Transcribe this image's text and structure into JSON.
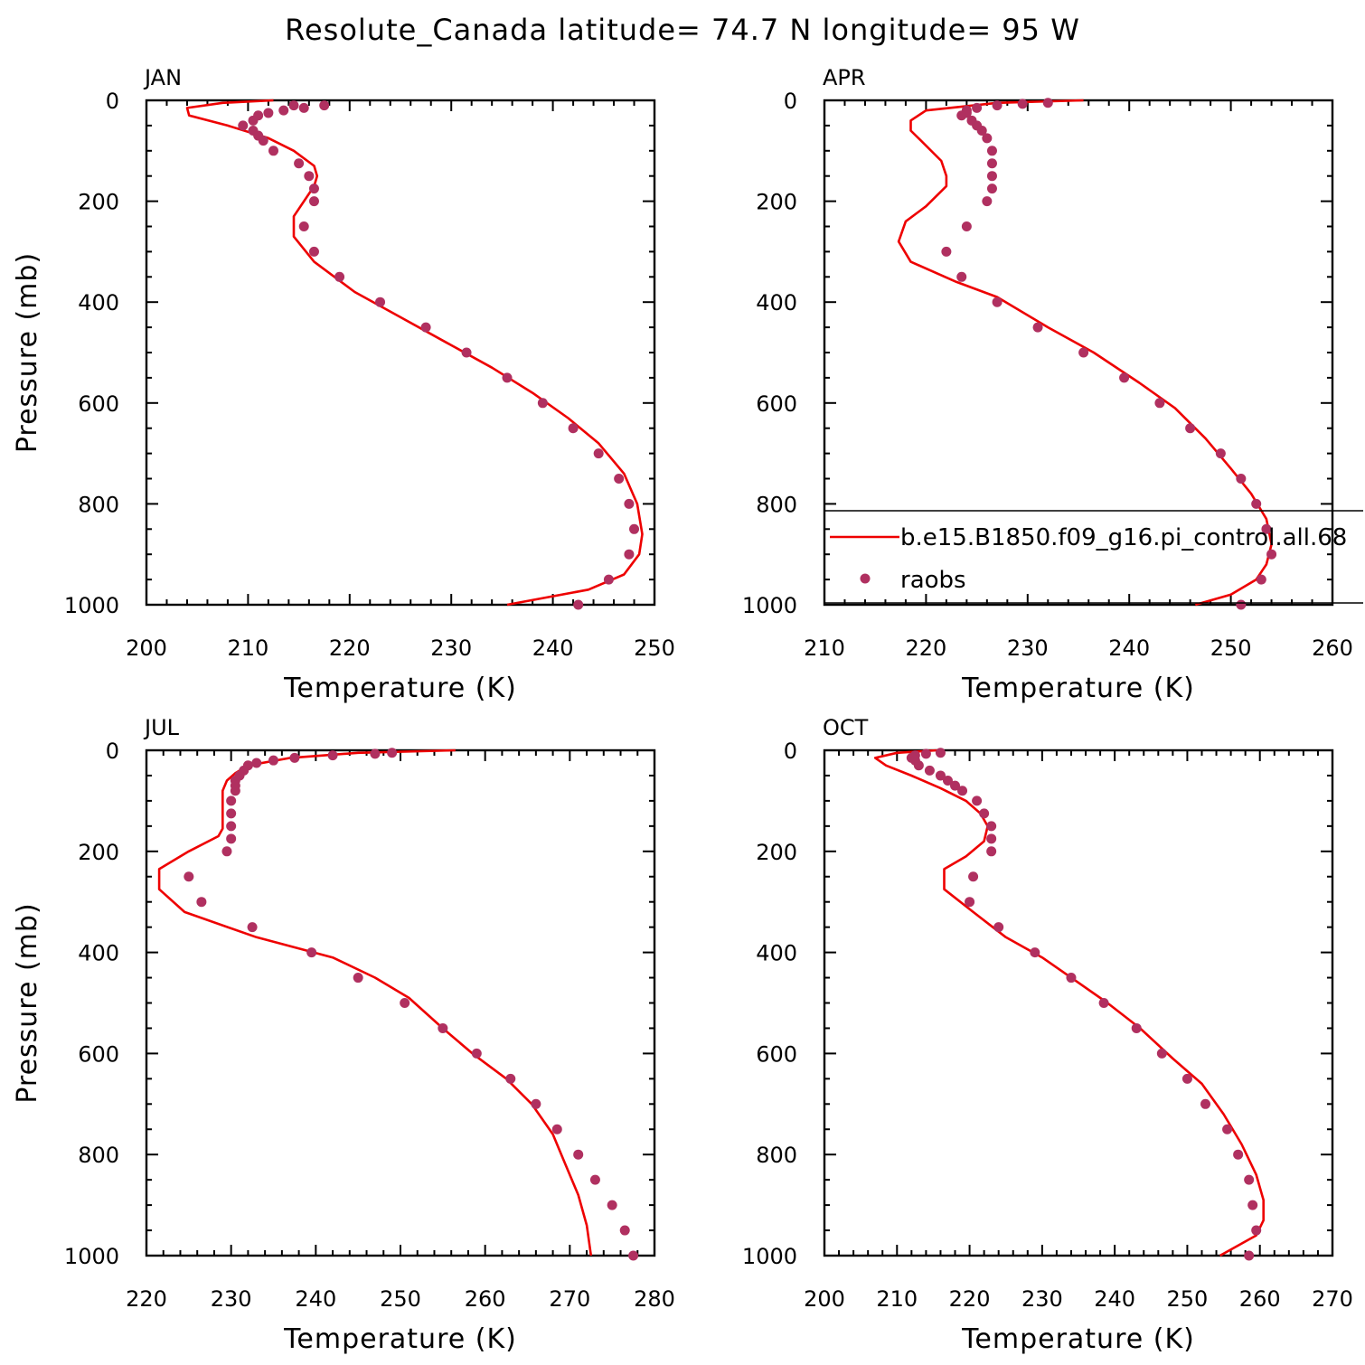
{
  "title": "Resolute_Canada  latitude= 74.7 N longitude= 95 W",
  "colors": {
    "model": "#ee0000",
    "obs": "#b03060",
    "axis": "#000000"
  },
  "legend": {
    "model_label": "b.e15.B1850.f09_g16.pi_control.all.68",
    "obs_label": "raobs"
  },
  "chart_data": [
    {
      "type": "line",
      "panel": "JAN",
      "title": "JAN",
      "xlabel": "Temperature (K)",
      "ylabel": "Pressure (mb)",
      "xlim": [
        200,
        250
      ],
      "ylim": [
        0,
        1000
      ],
      "y_inverted": true,
      "xticks": [
        200,
        210,
        220,
        230,
        240,
        250
      ],
      "yticks": [
        0,
        200,
        400,
        600,
        800,
        1000
      ],
      "series": [
        {
          "name": "b.e15.B1850.f09_g16.pi_control.all.68",
          "style": "line",
          "points": [
            [
              212.5,
              0
            ],
            [
              207.5,
              5
            ],
            [
              204,
              15
            ],
            [
              204.2,
              30
            ],
            [
              208,
              50
            ],
            [
              212,
              75
            ],
            [
              214.5,
              100
            ],
            [
              216.5,
              130
            ],
            [
              216.8,
              150
            ],
            [
              216.5,
              170
            ],
            [
              214.5,
              230
            ],
            [
              214.5,
              270
            ],
            [
              216.5,
              320
            ],
            [
              220.5,
              380
            ],
            [
              225,
              430
            ],
            [
              229.5,
              480
            ],
            [
              234,
              530
            ],
            [
              238,
              580
            ],
            [
              241.5,
              630
            ],
            [
              244.5,
              680
            ],
            [
              247,
              740
            ],
            [
              248.3,
              800
            ],
            [
              248.8,
              860
            ],
            [
              248.5,
              900
            ],
            [
              247,
              940
            ],
            [
              243.5,
              970
            ],
            [
              235.5,
              1000
            ]
          ]
        },
        {
          "name": "raobs",
          "style": "points",
          "points": [
            [
              217.5,
              10
            ],
            [
              214.5,
              10
            ],
            [
              215.5,
              15
            ],
            [
              213.5,
              20
            ],
            [
              212,
              25
            ],
            [
              211,
              30
            ],
            [
              210.5,
              40
            ],
            [
              209.5,
              50
            ],
            [
              210.5,
              60
            ],
            [
              211,
              70
            ],
            [
              211.5,
              80
            ],
            [
              212.5,
              100
            ],
            [
              215,
              125
            ],
            [
              216,
              150
            ],
            [
              216.5,
              175
            ],
            [
              216.5,
              200
            ],
            [
              215.5,
              250
            ],
            [
              216.5,
              300
            ],
            [
              219,
              350
            ],
            [
              223,
              400
            ],
            [
              227.5,
              450
            ],
            [
              231.5,
              500
            ],
            [
              235.5,
              550
            ],
            [
              239,
              600
            ],
            [
              242,
              650
            ],
            [
              244.5,
              700
            ],
            [
              246.5,
              750
            ],
            [
              247.5,
              800
            ],
            [
              248,
              850
            ],
            [
              247.5,
              900
            ],
            [
              245.5,
              950
            ],
            [
              242.5,
              1000
            ]
          ]
        }
      ]
    },
    {
      "type": "line",
      "panel": "APR",
      "title": "APR",
      "xlabel": "Temperature (K)",
      "ylabel": "",
      "xlim": [
        210,
        260
      ],
      "ylim": [
        0,
        1000
      ],
      "y_inverted": true,
      "xticks": [
        210,
        220,
        230,
        240,
        250,
        260
      ],
      "yticks": [
        0,
        200,
        400,
        600,
        800,
        1000
      ],
      "legend_position": "bottom-right",
      "series": [
        {
          "name": "b.e15.B1850.f09_g16.pi_control.all.68",
          "style": "line",
          "points": [
            [
              235.5,
              0
            ],
            [
              227,
              5
            ],
            [
              220,
              20
            ],
            [
              218.5,
              40
            ],
            [
              218.5,
              60
            ],
            [
              219.5,
              80
            ],
            [
              221.5,
              120
            ],
            [
              222,
              150
            ],
            [
              222,
              170
            ],
            [
              220,
              210
            ],
            [
              218,
              240
            ],
            [
              217.3,
              280
            ],
            [
              218.5,
              320
            ],
            [
              223,
              360
            ],
            [
              227,
              390
            ],
            [
              232,
              450
            ],
            [
              236.5,
              500
            ],
            [
              241,
              560
            ],
            [
              244.5,
              610
            ],
            [
              247.5,
              670
            ],
            [
              250,
              730
            ],
            [
              252,
              780
            ],
            [
              253.5,
              830
            ],
            [
              254,
              880
            ],
            [
              253.5,
              920
            ],
            [
              252.5,
              950
            ],
            [
              250,
              980
            ],
            [
              246.5,
              1000
            ]
          ]
        },
        {
          "name": "raobs",
          "style": "points",
          "points": [
            [
              232,
              5
            ],
            [
              229.5,
              7
            ],
            [
              227,
              10
            ],
            [
              225,
              15
            ],
            [
              224,
              20
            ],
            [
              224,
              25
            ],
            [
              223.5,
              30
            ],
            [
              224.5,
              40
            ],
            [
              225,
              50
            ],
            [
              225.5,
              60
            ],
            [
              226,
              75
            ],
            [
              226.5,
              100
            ],
            [
              226.5,
              125
            ],
            [
              226.5,
              150
            ],
            [
              226.5,
              175
            ],
            [
              226,
              200
            ],
            [
              224,
              250
            ],
            [
              222,
              300
            ],
            [
              223.5,
              350
            ],
            [
              227,
              400
            ],
            [
              231,
              450
            ],
            [
              235.5,
              500
            ],
            [
              239.5,
              550
            ],
            [
              243,
              600
            ],
            [
              246,
              650
            ],
            [
              249,
              700
            ],
            [
              251,
              750
            ],
            [
              252.5,
              800
            ],
            [
              253.5,
              850
            ],
            [
              254,
              900
            ],
            [
              253,
              950
            ],
            [
              251,
              1000
            ]
          ]
        }
      ]
    },
    {
      "type": "line",
      "panel": "JUL",
      "title": "JUL",
      "xlabel": "Temperature (K)",
      "ylabel": "Pressure (mb)",
      "xlim": [
        220,
        280
      ],
      "ylim": [
        0,
        1000
      ],
      "y_inverted": true,
      "xticks": [
        220,
        230,
        240,
        250,
        260,
        270,
        280
      ],
      "yticks": [
        0,
        200,
        400,
        600,
        800,
        1000
      ],
      "series": [
        {
          "name": "b.e15.B1850.f09_g16.pi_control.all.68",
          "style": "line",
          "points": [
            [
              256.5,
              0
            ],
            [
              245,
              5
            ],
            [
              237,
              15
            ],
            [
              232,
              30
            ],
            [
              230.5,
              45
            ],
            [
              229.5,
              60
            ],
            [
              229,
              80
            ],
            [
              229,
              120
            ],
            [
              229,
              155
            ],
            [
              228.5,
              170
            ],
            [
              225,
              200
            ],
            [
              221.5,
              235
            ],
            [
              221.5,
              275
            ],
            [
              224.5,
              320
            ],
            [
              233,
              370
            ],
            [
              242,
              410
            ],
            [
              247,
              450
            ],
            [
              251,
              490
            ],
            [
              255,
              550
            ],
            [
              258.5,
              600
            ],
            [
              262.5,
              650
            ],
            [
              265.5,
              700
            ],
            [
              268,
              760
            ],
            [
              269.5,
              820
            ],
            [
              271,
              880
            ],
            [
              272,
              940
            ],
            [
              272.5,
              1000
            ]
          ]
        },
        {
          "name": "raobs",
          "style": "points",
          "points": [
            [
              249,
              5
            ],
            [
              247,
              7
            ],
            [
              242,
              10
            ],
            [
              237.5,
              15
            ],
            [
              235,
              20
            ],
            [
              233,
              25
            ],
            [
              232,
              30
            ],
            [
              231.5,
              40
            ],
            [
              231,
              50
            ],
            [
              230.5,
              60
            ],
            [
              230.5,
              70
            ],
            [
              230.5,
              80
            ],
            [
              230,
              100
            ],
            [
              230,
              125
            ],
            [
              230,
              150
            ],
            [
              230,
              175
            ],
            [
              229.5,
              200
            ],
            [
              225,
              250
            ],
            [
              226.5,
              300
            ],
            [
              232.5,
              350
            ],
            [
              239.5,
              400
            ],
            [
              245,
              450
            ],
            [
              250.5,
              500
            ],
            [
              255,
              550
            ],
            [
              259,
              600
            ],
            [
              263,
              650
            ],
            [
              266,
              700
            ],
            [
              268.5,
              750
            ],
            [
              271,
              800
            ],
            [
              273,
              850
            ],
            [
              275,
              900
            ],
            [
              276.5,
              950
            ],
            [
              277.5,
              1000
            ]
          ]
        }
      ]
    },
    {
      "type": "line",
      "panel": "OCT",
      "title": "OCT",
      "xlabel": "Temperature (K)",
      "ylabel": "",
      "xlim": [
        200,
        270
      ],
      "ylim": [
        0,
        1000
      ],
      "y_inverted": true,
      "xticks": [
        200,
        210,
        220,
        230,
        240,
        250,
        260,
        270
      ],
      "yticks": [
        0,
        200,
        400,
        600,
        800,
        1000
      ],
      "series": [
        {
          "name": "b.e15.B1850.f09_g16.pi_control.all.68",
          "style": "line",
          "points": [
            [
              215.5,
              0
            ],
            [
              210,
              5
            ],
            [
              207,
              15
            ],
            [
              208.5,
              30
            ],
            [
              212,
              50
            ],
            [
              216,
              75
            ],
            [
              219.5,
              100
            ],
            [
              221.5,
              125
            ],
            [
              222.5,
              150
            ],
            [
              222,
              180
            ],
            [
              219.5,
              210
            ],
            [
              216.5,
              235
            ],
            [
              216.5,
              275
            ],
            [
              220.5,
              320
            ],
            [
              225,
              370
            ],
            [
              230,
              410
            ],
            [
              235,
              460
            ],
            [
              239,
              500
            ],
            [
              243.5,
              550
            ],
            [
              248,
              610
            ],
            [
              252,
              660
            ],
            [
              255,
              720
            ],
            [
              257.5,
              780
            ],
            [
              259.5,
              840
            ],
            [
              260.5,
              890
            ],
            [
              260.5,
              930
            ],
            [
              259.5,
              960
            ],
            [
              254.5,
              1000
            ]
          ]
        },
        {
          "name": "raobs",
          "style": "points",
          "points": [
            [
              216,
              5
            ],
            [
              214,
              7
            ],
            [
              212.5,
              10
            ],
            [
              212,
              15
            ],
            [
              212.5,
              20
            ],
            [
              213,
              30
            ],
            [
              214.5,
              40
            ],
            [
              216,
              50
            ],
            [
              217,
              60
            ],
            [
              218,
              70
            ],
            [
              219,
              80
            ],
            [
              221,
              100
            ],
            [
              222,
              125
            ],
            [
              223,
              150
            ],
            [
              223,
              175
            ],
            [
              223,
              200
            ],
            [
              220.5,
              250
            ],
            [
              220,
              300
            ],
            [
              224,
              350
            ],
            [
              229,
              400
            ],
            [
              234,
              450
            ],
            [
              238.5,
              500
            ],
            [
              243,
              550
            ],
            [
              246.5,
              600
            ],
            [
              250,
              650
            ],
            [
              252.5,
              700
            ],
            [
              255.5,
              750
            ],
            [
              257,
              800
            ],
            [
              258.5,
              850
            ],
            [
              259,
              900
            ],
            [
              259.5,
              950
            ],
            [
              258.5,
              1000
            ]
          ]
        }
      ]
    }
  ]
}
